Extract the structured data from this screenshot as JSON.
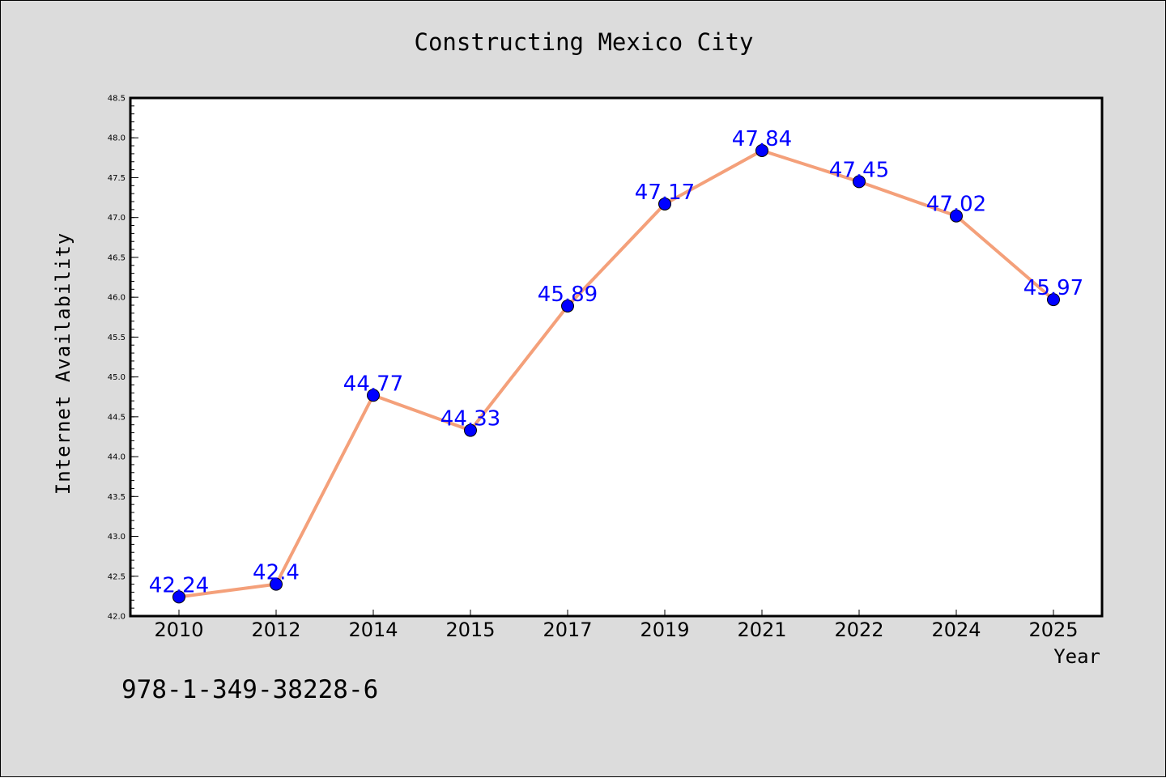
{
  "chart_data": {
    "type": "line",
    "title": "Constructing Mexico City",
    "xlabel": "Year",
    "ylabel": "Internet Availability",
    "categories": [
      "2010",
      "2012",
      "2014",
      "2015",
      "2017",
      "2019",
      "2021",
      "2022",
      "2024",
      "2025"
    ],
    "series": [
      {
        "values": [
          42.24,
          42.4,
          44.77,
          44.33,
          45.89,
          47.17,
          47.84,
          47.45,
          47.02,
          45.97
        ],
        "line_color": "#f4a07a",
        "marker_color": "#0000ff"
      }
    ],
    "data_labels": [
      "42.24",
      "42.4",
      "44.77",
      "44.33",
      "45.89",
      "47.17",
      "47.84",
      "47.45",
      "47.02",
      "45.97"
    ],
    "ylim": [
      42.0,
      48.5
    ],
    "yticks": [
      "42.0",
      "42.5",
      "43.0",
      "43.5",
      "44.0",
      "44.5",
      "45.0",
      "45.5",
      "46.0",
      "46.5",
      "47.0",
      "47.5",
      "48.0",
      "48.5"
    ],
    "grid": false,
    "legend": "none"
  },
  "footer_text": "978-1-349-38228-6",
  "colors": {
    "background": "#dcdcdc",
    "plot_background": "#ffffff",
    "data_label": "#0000ff"
  }
}
